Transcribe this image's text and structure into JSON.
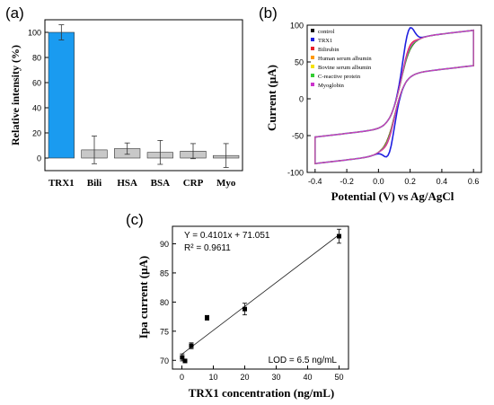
{
  "panels": {
    "a": "(a)",
    "b": "(b)",
    "c": "(c)"
  },
  "chart_data": [
    {
      "id": "a",
      "type": "bar",
      "title": "",
      "xlabel": "",
      "ylabel": "Relative intensity (%)",
      "ylim": [
        -10,
        110
      ],
      "yticks": [
        0,
        20,
        40,
        60,
        80,
        100
      ],
      "categories": [
        "TRX1",
        "Bili",
        "HSA",
        "BSA",
        "CRP",
        "Myo"
      ],
      "values": [
        100,
        6.5,
        7.5,
        4.5,
        5.5,
        2
      ],
      "errors": [
        6,
        11,
        4.5,
        9.5,
        6,
        9.5
      ],
      "colors": [
        "#1a9bf0",
        "#c8c8c8",
        "#c8c8c8",
        "#c8c8c8",
        "#c8c8c8",
        "#c8c8c8"
      ]
    },
    {
      "id": "b",
      "type": "line",
      "title": "",
      "xlabel": "Potential (V) vs Ag/AgCl",
      "ylabel": "Current (μA)",
      "xlim": [
        -0.45,
        0.65
      ],
      "ylim": [
        -100,
        100
      ],
      "xticks": [
        -0.4,
        -0.2,
        0.0,
        0.2,
        0.4,
        0.6
      ],
      "xtick_labels": [
        "-0.4",
        "-0.2",
        "0.0",
        "0.2",
        "0.4",
        "0.6"
      ],
      "yticks": [
        -100,
        -50,
        0,
        50,
        100
      ],
      "legend_position": "top-left",
      "series": [
        {
          "name": "control",
          "color": "#111111",
          "ipa": 67,
          "ipc": -68
        },
        {
          "name": "TRX1",
          "color": "#1f1fe0",
          "ipa": 91,
          "ipc": -87
        },
        {
          "name": "Bilirubin",
          "color": "#e8202a",
          "ipa": 72,
          "ipc": -72
        },
        {
          "name": "Human serum albumin",
          "color": "#ff9900",
          "ipa": 69,
          "ipc": -69
        },
        {
          "name": "Bovine serum albumin",
          "color": "#f5e100",
          "ipa": 68,
          "ipc": -70
        },
        {
          "name": "C-reactive protein",
          "color": "#33cc33",
          "ipa": 68,
          "ipc": -70
        },
        {
          "name": "Myoglobin",
          "color": "#cc33cc",
          "ipa": 70,
          "ipc": -71
        }
      ]
    },
    {
      "id": "c",
      "type": "scatter",
      "title": "",
      "xlabel": "TRX1 concentration (ng/mL)",
      "ylabel": "Ipa current (μA)",
      "xlim": [
        -3,
        53
      ],
      "ylim": [
        68.5,
        93
      ],
      "xticks": [
        0,
        10,
        20,
        30,
        40,
        50
      ],
      "yticks": [
        70,
        75,
        80,
        85,
        90
      ],
      "points": [
        {
          "x": 0.1,
          "y": 70.5,
          "err": 0.6
        },
        {
          "x": 1,
          "y": 69.9,
          "err": 0.3
        },
        {
          "x": 3,
          "y": 72.5,
          "err": 0.5
        },
        {
          "x": 8,
          "y": 77.3,
          "err": 0.4
        },
        {
          "x": 20,
          "y": 78.8,
          "err": 1.0
        },
        {
          "x": 50,
          "y": 91.3,
          "err": 1.2
        }
      ],
      "fit": {
        "slope": 0.4101,
        "intercept": 71.051
      },
      "equation": "Y = 0.4101x + 71.051",
      "r2": "R² = 0.9611",
      "lod": "LOD = 6.5 ng/mL"
    }
  ]
}
